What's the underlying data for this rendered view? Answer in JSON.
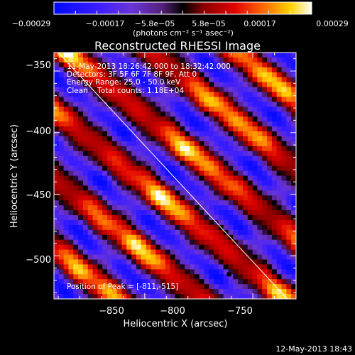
{
  "chart_data": {
    "type": "heatmap",
    "title": "Reconstructed RHESSI Image",
    "xlabel": "Heliocentric X (arcsec)",
    "ylabel": "Heliocentric Y (arcsec)",
    "xlim": [
      -892,
      -780
    ],
    "ylim": [
      -535,
      -335
    ],
    "x_ticks": [
      -850,
      -800,
      -750
    ],
    "y_ticks": [
      -350,
      -400,
      -450,
      -500
    ],
    "x_tick_labels": [
      "−850",
      "−800",
      "−750"
    ],
    "y_tick_labels": [
      "−350",
      "−400",
      "−450",
      "−500"
    ],
    "colorbar": {
      "range": [
        -0.00029,
        0.00029
      ],
      "tick_labels": [
        "−0.00029",
        "−0.00017",
        "−5.8e−05",
        "5.8e−05",
        "0.00017",
        "0.00029"
      ],
      "unit_text": "(photons cm⁻² s⁻¹ asec⁻²)"
    },
    "annotations": [
      "11-May-2013 18:26:42.000 to 18:32:42.000",
      "Detectors: 3F 5F 6F 7F 8F 9F, Att 0",
      "Energy Range: 25.0 - 50.0 keV",
      "Clean    Total counts: 1.18E+04"
    ],
    "peak_text": "Position of Peak = [-811,-515]",
    "peak": {
      "x": -811,
      "y": -515
    },
    "limb_line": [
      [
        -890,
        -335
      ],
      [
        -784,
        -535
      ]
    ],
    "grid": false
  },
  "footer": {
    "date": "12-May-2013 18:43"
  }
}
